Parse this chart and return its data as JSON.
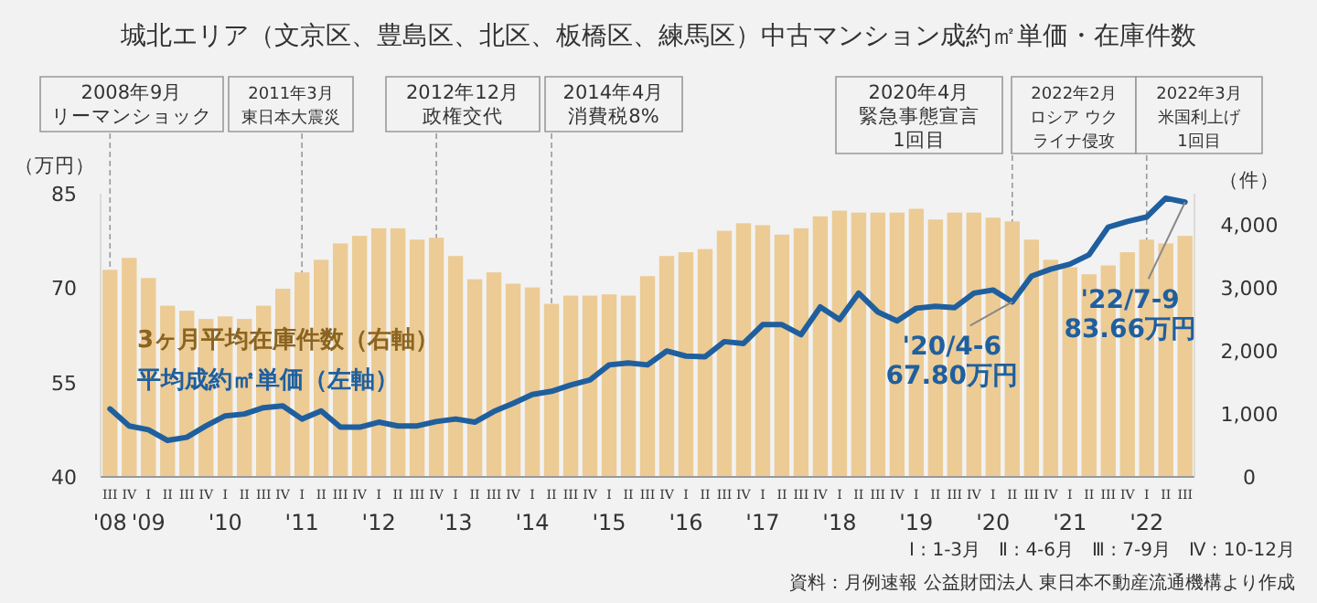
{
  "chart_data": {
    "type": "bar",
    "title": "城北エリア（文京区、豊島区、北区、板橋区、練馬区）中古マンション成約㎡単価・在庫件数",
    "categories": [
      "III\n'08",
      "IV",
      "I\n'09",
      "II",
      "III",
      "IV",
      "I\n'10",
      "II",
      "III",
      "IV",
      "I\n'11",
      "II",
      "III",
      "IV",
      "I\n'12",
      "II",
      "III",
      "IV",
      "I\n'13",
      "II",
      "III",
      "IV",
      "I\n'14",
      "II",
      "III",
      "IV",
      "I\n'15",
      "II",
      "III",
      "IV",
      "I\n'16",
      "II",
      "III",
      "IV",
      "I\n'17",
      "II",
      "III",
      "IV",
      "I\n'18",
      "II",
      "III",
      "IV",
      "I\n'19",
      "II",
      "III",
      "IV",
      "I\n'20",
      "II",
      "III",
      "IV",
      "I\n'21",
      "II",
      "III",
      "IV",
      "I\n'22",
      "II",
      "III"
    ],
    "series": [
      {
        "name": "3ヶ月平均在庫件数（右軸）",
        "axis": "y2",
        "color": "#eccb95",
        "values": [
          3290,
          3480,
          3160,
          2720,
          2640,
          2510,
          2550,
          2510,
          2720,
          2990,
          3250,
          3450,
          3710,
          3830,
          3950,
          3950,
          3770,
          3800,
          3510,
          3140,
          3250,
          3070,
          3010,
          2750,
          2880,
          2880,
          2900,
          2880,
          3190,
          3510,
          3570,
          3620,
          3910,
          4030,
          4000,
          3850,
          3950,
          4140,
          4230,
          4200,
          4200,
          4200,
          4260,
          4090,
          4200,
          4200,
          4120,
          4060,
          3770,
          3450,
          3330,
          3220,
          3360,
          3570,
          3770,
          3710,
          3830
        ]
      },
      {
        "name": "平均成約㎡単価（左軸）",
        "type": "line",
        "axis": "y",
        "color": "#1f5f9e",
        "values": [
          50.8,
          48.1,
          47.5,
          45.8,
          46.3,
          48.1,
          49.7,
          50.0,
          51.0,
          51.3,
          49.2,
          50.5,
          47.9,
          47.9,
          48.7,
          48.1,
          48.1,
          48.8,
          49.2,
          48.7,
          50.4,
          51.7,
          53.1,
          53.6,
          54.6,
          55.4,
          57.8,
          58.1,
          57.8,
          60.0,
          59.2,
          59.1,
          61.5,
          61.2,
          64.2,
          64.2,
          62.6,
          67.0,
          65.0,
          69.2,
          66.2,
          64.8,
          66.8,
          67.1,
          66.9,
          69.2,
          69.7,
          67.8,
          71.9,
          73.0,
          73.8,
          75.3,
          79.7,
          80.6,
          81.3,
          84.3,
          83.66
        ],
        "value_labels": [
          null,
          null,
          null,
          null,
          null,
          null,
          null,
          null,
          null,
          null,
          null,
          null,
          null,
          null,
          null,
          null,
          null,
          null,
          null,
          null,
          null,
          null,
          null,
          null,
          null,
          null,
          null,
          null,
          null,
          null,
          null,
          null,
          null,
          null,
          null,
          null,
          null,
          null,
          null,
          null,
          null,
          null,
          null,
          null,
          null,
          null,
          null,
          "'20/4-6\n67.80万円",
          null,
          null,
          null,
          null,
          null,
          null,
          null,
          null,
          "'22/7-9\n83.66万円"
        ]
      }
    ],
    "ylabel": "（万円）",
    "y2label": "（件）",
    "ylim": [
      40,
      85
    ],
    "yticks": [
      40,
      55,
      70,
      85
    ],
    "y2lim": [
      0,
      4500
    ],
    "y2ticks": [
      0,
      {
        "value": 1000,
        "label": "1,000"
      },
      {
        "value": 2000,
        "label": "2,000"
      },
      {
        "value": 3000,
        "label": "3,000"
      },
      {
        "value": 4000,
        "label": "4,000"
      }
    ],
    "annotations": [
      "2008年9月リーマンショック",
      "2011年3月東日本大震災",
      "2012年12月政権交代",
      "2014年4月消費税8%",
      "2020年4月緊急事態宣言1回目",
      "2022年2月ロシア ウクライナ侵攻",
      "2022年3月米国利上げ1回目",
      "Ⅰ : 1-3月　Ⅱ : 4-6月　Ⅲ : 7-9月　Ⅳ : 10-12月",
      "資料：月例速報 公益財団法人 東日本不動産流通機構より作成"
    ],
    "legend": "left",
    "line_style": "solid",
    "marker": "none",
    "grid": false
  }
}
